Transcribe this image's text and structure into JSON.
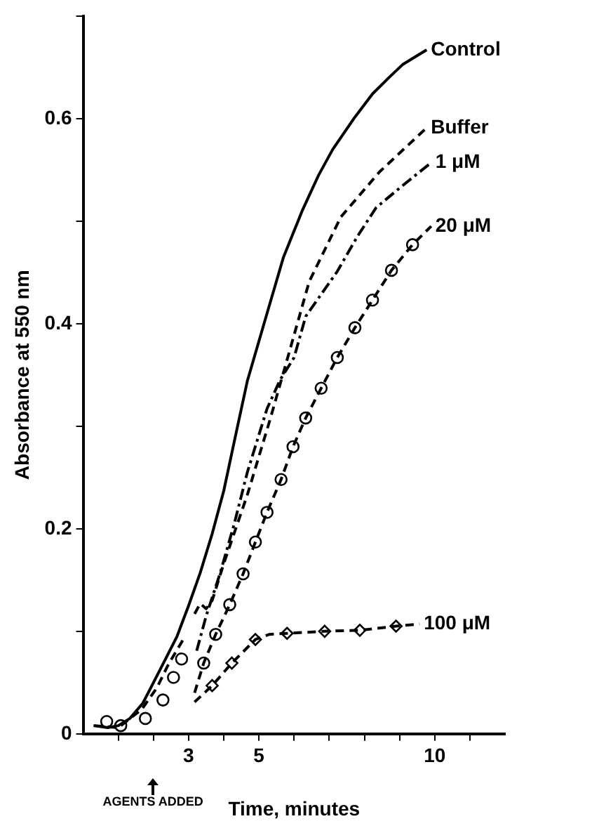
{
  "chart_data": {
    "type": "line",
    "xlabel": "Time, minutes",
    "ylabel": "Absorbance at 550 nm",
    "xlim": [
      0,
      12
    ],
    "ylim": [
      0,
      0.7
    ],
    "xticks": [
      {
        "value": 1,
        "label": null
      },
      {
        "value": 2,
        "label": null
      },
      3,
      {
        "value": 4,
        "label": null
      },
      5,
      {
        "value": 6,
        "label": null
      },
      {
        "value": 7,
        "label": null
      },
      {
        "value": 8,
        "label": null
      },
      {
        "value": 9,
        "label": null
      },
      10,
      {
        "value": 11,
        "label": null
      }
    ],
    "yticks": [
      0,
      {
        "value": 0.1,
        "label": null
      },
      0.2,
      {
        "value": 0.3,
        "label": null
      },
      0.4,
      {
        "value": 0.5,
        "label": null
      },
      0.6,
      {
        "value": 0.7,
        "label": null
      }
    ],
    "grid": false,
    "legend": false,
    "series": [
      {
        "name": "Control",
        "color": "#000000",
        "line_style": "solid",
        "marker": "none",
        "x": [
          0.3,
          0.7,
          1,
          1.33,
          1.7,
          2,
          2.33,
          2.67,
          3,
          3.33,
          3.67,
          4,
          4.33,
          4.67,
          5.23,
          5.7,
          6.23,
          6.7,
          7.1,
          7.7,
          8.23,
          8.7,
          9.1,
          9.77
        ],
        "values": [
          0.008,
          0.006,
          0.008,
          0.015,
          0.03,
          0.05,
          0.072,
          0.095,
          0.125,
          0.157,
          0.195,
          0.237,
          0.29,
          0.344,
          0.41,
          0.465,
          0.51,
          0.545,
          0.57,
          0.6,
          0.624,
          0.64,
          0.653,
          0.667
        ]
      },
      {
        "name": "Buffer",
        "color": "#000000",
        "line_style": "dashed",
        "marker": "none",
        "x": [
          0.3,
          1,
          1.67,
          2.1,
          2.43,
          2.9,
          3.0,
          3.17,
          3.33,
          3.5,
          3.67,
          4,
          4.67,
          5.33,
          5.77,
          6.43,
          7.33,
          8.43,
          9.77
        ],
        "values": [
          0.008,
          0.006,
          0.024,
          0.045,
          0.068,
          0.095,
          null,
          0.117,
          0.127,
          0.122,
          0.13,
          0.166,
          0.233,
          0.308,
          0.361,
          0.441,
          0.504,
          0.548,
          0.591
        ]
      },
      {
        "name": "1 μM",
        "color": "#000000",
        "line_style": "dashdot",
        "marker": "none",
        "x": [
          3.23,
          3.5,
          3.9,
          4.3,
          4.67,
          5.23,
          5.6,
          6,
          6.33,
          6.8,
          7.23,
          7.8,
          8.33,
          9.1,
          9.9
        ],
        "values": [
          0.081,
          0.115,
          0.157,
          0.205,
          0.255,
          0.317,
          0.345,
          0.367,
          0.407,
          0.43,
          0.451,
          0.485,
          0.513,
          0.535,
          0.557
        ]
      },
      {
        "name": "20 μM",
        "color": "#000000",
        "line_style": "dashed",
        "marker": "none",
        "x": [
          3.17,
          3.43,
          3.77,
          4.17,
          4.55,
          4.9,
          5.23,
          5.63,
          5.97,
          6.33,
          6.77,
          7.23,
          7.73,
          8.23,
          8.77,
          9.37,
          9.9
        ],
        "values": [
          0.04,
          0.069,
          0.097,
          0.126,
          0.156,
          0.187,
          0.216,
          0.248,
          0.28,
          0.308,
          0.337,
          0.367,
          0.396,
          0.423,
          0.452,
          0.477,
          0.495
        ]
      },
      {
        "color": "#000000",
        "type": "scatter",
        "marker": "circle",
        "x": [
          0.67,
          1.07,
          1.77,
          2.27,
          2.57,
          2.8,
          3.43,
          3.77,
          4.17,
          4.55,
          4.9,
          5.23,
          5.63,
          5.97,
          6.33,
          6.77,
          7.23,
          7.73,
          8.23,
          8.77,
          9.37
        ],
        "values": [
          0.012,
          0.008,
          0.015,
          0.033,
          0.055,
          0.073,
          0.069,
          0.097,
          0.126,
          0.156,
          0.187,
          0.216,
          0.248,
          0.28,
          0.308,
          0.337,
          0.367,
          0.396,
          0.423,
          0.452,
          0.477
        ]
      },
      {
        "name": "100 μM",
        "color": "#000000",
        "line_style": "dashed",
        "marker": "none",
        "x": [
          3.17,
          3.67,
          4.23,
          4.9,
          5.3,
          5.8,
          6.87,
          7.87,
          8.9,
          9.57
        ],
        "values": [
          0.031,
          0.047,
          0.069,
          0.092,
          0.097,
          0.098,
          0.1,
          0.101,
          0.105,
          0.107
        ]
      },
      {
        "color": "#000000",
        "type": "scatter",
        "marker": "diamond",
        "x": [
          3.67,
          4.23,
          4.9,
          5.8,
          6.87,
          7.87,
          8.9
        ],
        "values": [
          0.047,
          0.069,
          0.092,
          0.098,
          0.1,
          0.101,
          0.105
        ]
      }
    ],
    "annotations": [
      "AGENTS ADDED"
    ]
  }
}
